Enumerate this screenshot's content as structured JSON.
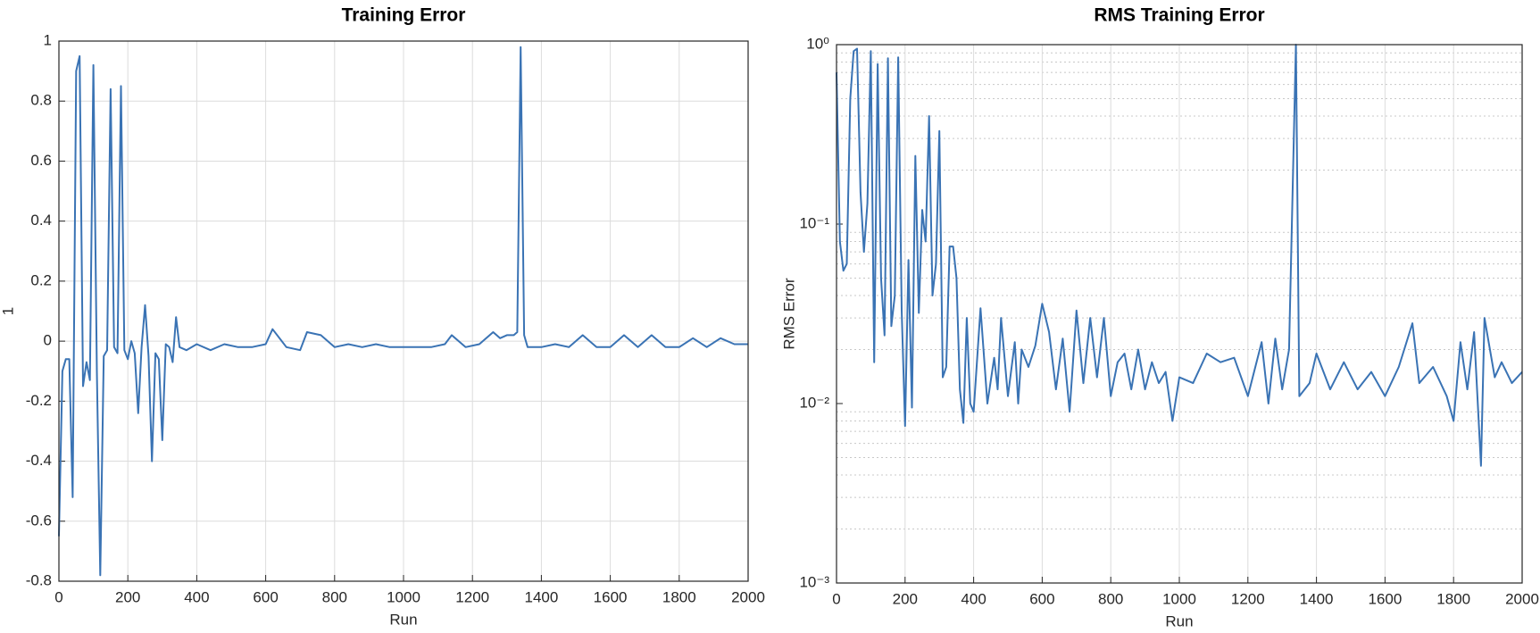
{
  "chart_data": [
    {
      "type": "line",
      "title": "Training Error",
      "xlabel": "Run",
      "ylabel": "1",
      "color": "#3a73b4",
      "grid": true,
      "x": [
        0,
        10,
        20,
        30,
        40,
        50,
        60,
        70,
        80,
        90,
        100,
        110,
        120,
        130,
        140,
        150,
        160,
        170,
        180,
        190,
        200,
        210,
        220,
        230,
        240,
        250,
        260,
        270,
        280,
        290,
        300,
        310,
        320,
        330,
        340,
        350,
        370,
        400,
        440,
        480,
        520,
        560,
        600,
        620,
        660,
        700,
        720,
        760,
        800,
        840,
        880,
        920,
        960,
        1000,
        1040,
        1080,
        1120,
        1140,
        1180,
        1220,
        1260,
        1280,
        1300,
        1320,
        1330,
        1340,
        1350,
        1360,
        1400,
        1440,
        1480,
        1520,
        1560,
        1600,
        1640,
        1680,
        1720,
        1760,
        1800,
        1840,
        1880,
        1920,
        1960,
        2000
      ],
      "values": [
        -0.65,
        -0.1,
        -0.06,
        -0.06,
        -0.52,
        0.9,
        0.95,
        -0.15,
        -0.07,
        -0.13,
        0.92,
        -0.1,
        -0.78,
        -0.05,
        -0.03,
        0.84,
        -0.02,
        -0.04,
        0.85,
        -0.03,
        -0.06,
        0,
        -0.04,
        -0.24,
        -0.02,
        0.12,
        -0.05,
        -0.4,
        -0.04,
        -0.06,
        -0.33,
        -0.01,
        -0.02,
        -0.07,
        0.08,
        -0.02,
        -0.03,
        -0.01,
        -0.03,
        -0.01,
        -0.02,
        -0.02,
        -0.01,
        0.04,
        -0.02,
        -0.03,
        0.03,
        0.02,
        -0.02,
        -0.01,
        -0.02,
        -0.01,
        -0.02,
        -0.02,
        -0.02,
        -0.02,
        -0.01,
        0.02,
        -0.02,
        -0.01,
        0.03,
        0.01,
        0.02,
        0.02,
        0.03,
        0.98,
        0.02,
        -0.02,
        -0.02,
        -0.01,
        -0.02,
        0.02,
        -0.02,
        -0.02,
        0.02,
        -0.02,
        0.02,
        -0.02,
        -0.02,
        0.01,
        -0.02,
        0.01,
        -0.01,
        -0.01
      ],
      "xlim": [
        0,
        2000
      ],
      "xticks": [
        0,
        200,
        400,
        600,
        800,
        1000,
        1200,
        1400,
        1600,
        1800,
        2000
      ],
      "ylim": [
        -0.8,
        1
      ],
      "yticks": [
        -0.8,
        -0.6,
        -0.4,
        -0.2,
        0,
        0.2,
        0.4,
        0.6,
        0.8,
        1
      ]
    },
    {
      "type": "line",
      "title": "RMS Training Error",
      "xlabel": "Run",
      "ylabel": "RMS Error",
      "color": "#3a73b4",
      "grid": true,
      "yscale": "log",
      "x": [
        0,
        10,
        20,
        30,
        40,
        50,
        60,
        70,
        80,
        90,
        100,
        110,
        120,
        130,
        140,
        150,
        160,
        170,
        180,
        190,
        200,
        210,
        220,
        230,
        240,
        250,
        260,
        270,
        280,
        290,
        300,
        310,
        320,
        330,
        340,
        350,
        360,
        370,
        380,
        390,
        400,
        420,
        440,
        460,
        470,
        480,
        500,
        520,
        530,
        540,
        560,
        580,
        600,
        620,
        640,
        660,
        680,
        700,
        720,
        740,
        760,
        780,
        800,
        820,
        840,
        860,
        880,
        900,
        920,
        940,
        960,
        980,
        1000,
        1040,
        1080,
        1120,
        1160,
        1200,
        1240,
        1260,
        1280,
        1300,
        1320,
        1340,
        1350,
        1380,
        1400,
        1440,
        1480,
        1520,
        1560,
        1600,
        1640,
        1680,
        1700,
        1740,
        1780,
        1800,
        1820,
        1840,
        1860,
        1880,
        1890,
        1920,
        1940,
        1970,
        2000
      ],
      "values": [
        0.7,
        0.08,
        0.055,
        0.06,
        0.5,
        0.92,
        0.95,
        0.15,
        0.07,
        0.13,
        0.92,
        0.017,
        0.78,
        0.05,
        0.024,
        0.84,
        0.027,
        0.04,
        0.85,
        0.033,
        0.0075,
        0.063,
        0.0095,
        0.24,
        0.032,
        0.12,
        0.08,
        0.4,
        0.04,
        0.06,
        0.33,
        0.014,
        0.016,
        0.075,
        0.075,
        0.05,
        0.012,
        0.0078,
        0.03,
        0.01,
        0.009,
        0.034,
        0.01,
        0.018,
        0.012,
        0.03,
        0.011,
        0.022,
        0.01,
        0.02,
        0.016,
        0.021,
        0.036,
        0.025,
        0.012,
        0.023,
        0.009,
        0.033,
        0.013,
        0.03,
        0.014,
        0.03,
        0.011,
        0.017,
        0.019,
        0.012,
        0.02,
        0.012,
        0.017,
        0.013,
        0.015,
        0.008,
        0.014,
        0.013,
        0.019,
        0.017,
        0.018,
        0.011,
        0.022,
        0.01,
        0.023,
        0.012,
        0.02,
        1.0,
        0.011,
        0.013,
        0.019,
        0.012,
        0.017,
        0.012,
        0.015,
        0.011,
        0.016,
        0.028,
        0.013,
        0.016,
        0.011,
        0.008,
        0.022,
        0.012,
        0.025,
        0.0045,
        0.03,
        0.014,
        0.017,
        0.013,
        0.015
      ],
      "xlim": [
        0,
        2000
      ],
      "xticks": [
        0,
        200,
        400,
        600,
        800,
        1000,
        1200,
        1400,
        1600,
        1800,
        2000
      ],
      "ylim": [
        0.001,
        1
      ],
      "yticks": [
        {
          "value": 0.001,
          "label": "10⁻³"
        },
        {
          "value": 0.01,
          "label": "10⁻²"
        },
        {
          "value": 0.1,
          "label": "10⁻¹"
        },
        {
          "value": 1,
          "label": "10⁰"
        }
      ],
      "minor_yticks": [
        0.002,
        0.003,
        0.004,
        0.005,
        0.006,
        0.007,
        0.008,
        0.009,
        0.02,
        0.03,
        0.04,
        0.05,
        0.06,
        0.07,
        0.08,
        0.09,
        0.2,
        0.3,
        0.4,
        0.5,
        0.6,
        0.7,
        0.8,
        0.9
      ]
    }
  ]
}
